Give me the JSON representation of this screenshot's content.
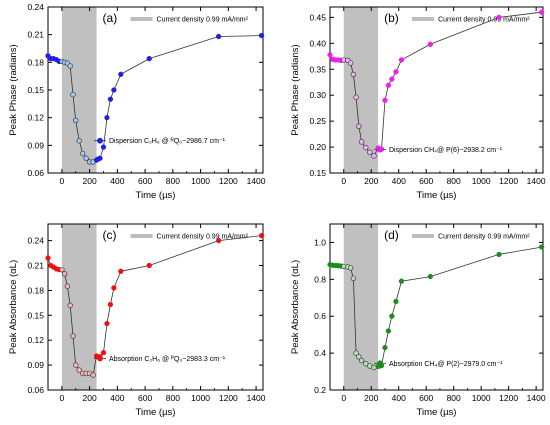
{
  "colors": {
    "gray_band": "#c0c0c0",
    "legend_band": "#bdbdbd",
    "line": "#333333",
    "blue": "#1f1fe6",
    "blue_light": "#9ec8f0",
    "magenta": "#ee1fee",
    "magenta_light": "#f1b2f4",
    "red": "#ee1111",
    "red_light": "#f3b3b3",
    "green": "#1d8c1d",
    "green_light": "#b4e0b4"
  },
  "chart_data": [
    {
      "type": "line",
      "panel": "(a)",
      "current_density": "Current density 0.99 mA/mm²",
      "ylabel": "Peak Phase (radians)",
      "xlabel": "Time (µs)",
      "xlim": [
        -100,
        1450
      ],
      "ylim": [
        0.06,
        0.24
      ],
      "xticks": [
        "0",
        "200",
        "400",
        "600",
        "800",
        "1000",
        "1200",
        "1400"
      ],
      "yticks": [
        "0.06",
        "0.09",
        "0.12",
        "0.15",
        "0.18",
        "0.21",
        "0.24"
      ],
      "shaded_interval": [
        0,
        250
      ],
      "grid": false,
      "legend": "Dispersion C₂H₆ @ ᴿQ₀~2986.7 cm⁻¹",
      "x": [
        -100,
        -80,
        -60,
        -40,
        -20,
        0,
        20,
        40,
        60,
        80,
        100,
        125,
        150,
        175,
        200,
        225,
        250,
        260,
        275,
        300,
        325,
        350,
        375,
        425,
        630,
        1130,
        1440
      ],
      "y": [
        0.187,
        0.184,
        0.184,
        0.183,
        0.181,
        0.181,
        0.18,
        0.179,
        0.176,
        0.145,
        0.117,
        0.095,
        0.081,
        0.076,
        0.072,
        0.072,
        0.074,
        0.075,
        0.076,
        0.088,
        0.12,
        0.14,
        0.15,
        0.167,
        0.184,
        0.208,
        0.209
      ],
      "interval_points": [
        true,
        true,
        true,
        true,
        true,
        false,
        false,
        false,
        false,
        false,
        false,
        false,
        false,
        false,
        false,
        false,
        true,
        true,
        true,
        true,
        true,
        true,
        true,
        true,
        true,
        true,
        true
      ]
    },
    {
      "type": "line",
      "panel": "(b)",
      "current_density": "Current density 0.99 mA/mm²",
      "ylabel": "Peak Phase (radians)",
      "xlabel": "Time (µs)",
      "xlim": [
        -100,
        1450
      ],
      "ylim": [
        0.15,
        0.47
      ],
      "xticks": [
        "0",
        "200",
        "400",
        "600",
        "800",
        "1000",
        "1200",
        "1400"
      ],
      "yticks": [
        "0.15",
        "0.20",
        "0.25",
        "0.30",
        "0.35",
        "0.40",
        "0.45"
      ],
      "shaded_interval": [
        0,
        250
      ],
      "grid": false,
      "legend": "Dispersion CH₄@ P(6)~2938.2 cm⁻¹",
      "x": [
        -100,
        -80,
        -60,
        -40,
        -20,
        0,
        30,
        50,
        70,
        90,
        110,
        130,
        160,
        190,
        220,
        250,
        260,
        275,
        300,
        325,
        350,
        380,
        420,
        630,
        1130,
        1440
      ],
      "y": [
        0.378,
        0.369,
        0.368,
        0.368,
        0.367,
        0.368,
        0.367,
        0.362,
        0.34,
        0.296,
        0.24,
        0.21,
        0.199,
        0.19,
        0.183,
        0.198,
        0.196,
        0.196,
        0.29,
        0.319,
        0.331,
        0.345,
        0.368,
        0.398,
        0.45,
        0.46
      ],
      "interval_points": [
        true,
        true,
        true,
        true,
        true,
        false,
        false,
        false,
        false,
        false,
        false,
        false,
        false,
        false,
        false,
        true,
        true,
        true,
        true,
        true,
        true,
        true,
        true,
        true,
        true,
        true
      ]
    },
    {
      "type": "line",
      "panel": "(c)",
      "current_density": "Current density 0.99 mA/mm²",
      "ylabel": "Peak Absorbance (αL)",
      "xlabel": "Time (µs)",
      "xlim": [
        -100,
        1450
      ],
      "ylim": [
        0.06,
        0.26
      ],
      "xticks": [
        "0",
        "200",
        "400",
        "600",
        "800",
        "1000",
        "1200",
        "1400"
      ],
      "yticks": [
        "0.06",
        "0.09",
        "0.12",
        "0.15",
        "0.18",
        "0.21",
        "0.24"
      ],
      "shaded_interval": [
        0,
        250
      ],
      "grid": false,
      "legend": "Absorption C₂H₆ @ ᴾQ₃~2983.3 cm⁻¹",
      "x": [
        -100,
        -80,
        -60,
        -40,
        -20,
        0,
        20,
        40,
        60,
        80,
        100,
        125,
        150,
        175,
        200,
        225,
        250,
        260,
        275,
        300,
        325,
        350,
        375,
        425,
        630,
        1130,
        1440
      ],
      "y": [
        0.219,
        0.21,
        0.208,
        0.206,
        0.205,
        0.205,
        0.2,
        0.185,
        0.162,
        0.125,
        0.09,
        0.084,
        0.08,
        0.08,
        0.08,
        0.078,
        0.101,
        0.1,
        0.1,
        0.105,
        0.14,
        0.163,
        0.183,
        0.203,
        0.21,
        0.24,
        0.246
      ],
      "interval_points": [
        true,
        true,
        true,
        true,
        true,
        false,
        false,
        false,
        false,
        false,
        false,
        false,
        false,
        false,
        false,
        false,
        true,
        true,
        true,
        true,
        true,
        true,
        true,
        true,
        true,
        true,
        true
      ]
    },
    {
      "type": "line",
      "panel": "(d)",
      "current_density": "Current density 0.99 mA/mm²",
      "ylabel": "Peak Absorbance (αL)",
      "xlabel": "Time (µs)",
      "xlim": [
        -100,
        1450
      ],
      "ylim": [
        0.2,
        1.1
      ],
      "xticks": [
        "0",
        "200",
        "400",
        "600",
        "800",
        "1000",
        "1200",
        "1400"
      ],
      "yticks": [
        "0.2",
        "0.4",
        "0.6",
        "0.8",
        "1.0"
      ],
      "shaded_interval": [
        0,
        250
      ],
      "grid": false,
      "legend": "Absorption CH₄@ P(2)~2979.0 cm⁻¹",
      "x": [
        -100,
        -80,
        -60,
        -40,
        -20,
        0,
        30,
        50,
        70,
        90,
        110,
        130,
        160,
        190,
        220,
        250,
        260,
        275,
        300,
        325,
        350,
        380,
        420,
        630,
        1130,
        1440
      ],
      "y": [
        0.88,
        0.876,
        0.875,
        0.874,
        0.872,
        0.87,
        0.867,
        0.862,
        0.805,
        0.4,
        0.38,
        0.36,
        0.343,
        0.33,
        0.322,
        0.328,
        0.33,
        0.332,
        0.43,
        0.52,
        0.6,
        0.68,
        0.79,
        0.815,
        0.935,
        0.975
      ],
      "interval_points": [
        true,
        true,
        true,
        true,
        true,
        false,
        false,
        false,
        false,
        false,
        false,
        false,
        false,
        false,
        false,
        true,
        true,
        true,
        true,
        true,
        true,
        true,
        true,
        true,
        true,
        true
      ]
    }
  ]
}
